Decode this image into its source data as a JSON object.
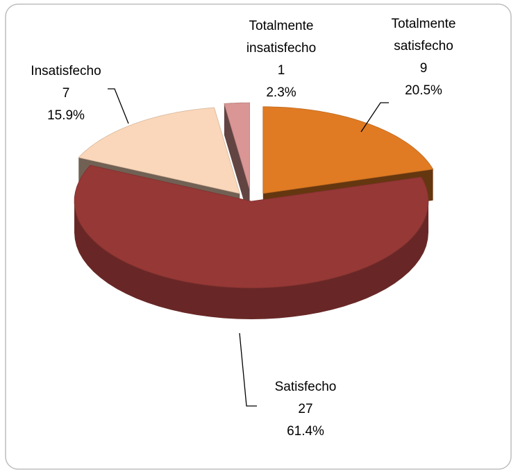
{
  "chart_data": {
    "type": "pie",
    "categories": [
      "Totalmente satisfecho",
      "Satisfecho",
      "Insatisfecho",
      "Totalmente insatisfecho"
    ],
    "counts": [
      9,
      27,
      7,
      1
    ],
    "values": [
      20.5,
      61.4,
      15.9,
      2.3
    ],
    "value_labels": [
      "20.5%",
      "61.4%",
      "15.9%",
      "2.3%"
    ],
    "colors": [
      "#e07b23",
      "#953836",
      "#fad7ba",
      "#d99694"
    ]
  }
}
